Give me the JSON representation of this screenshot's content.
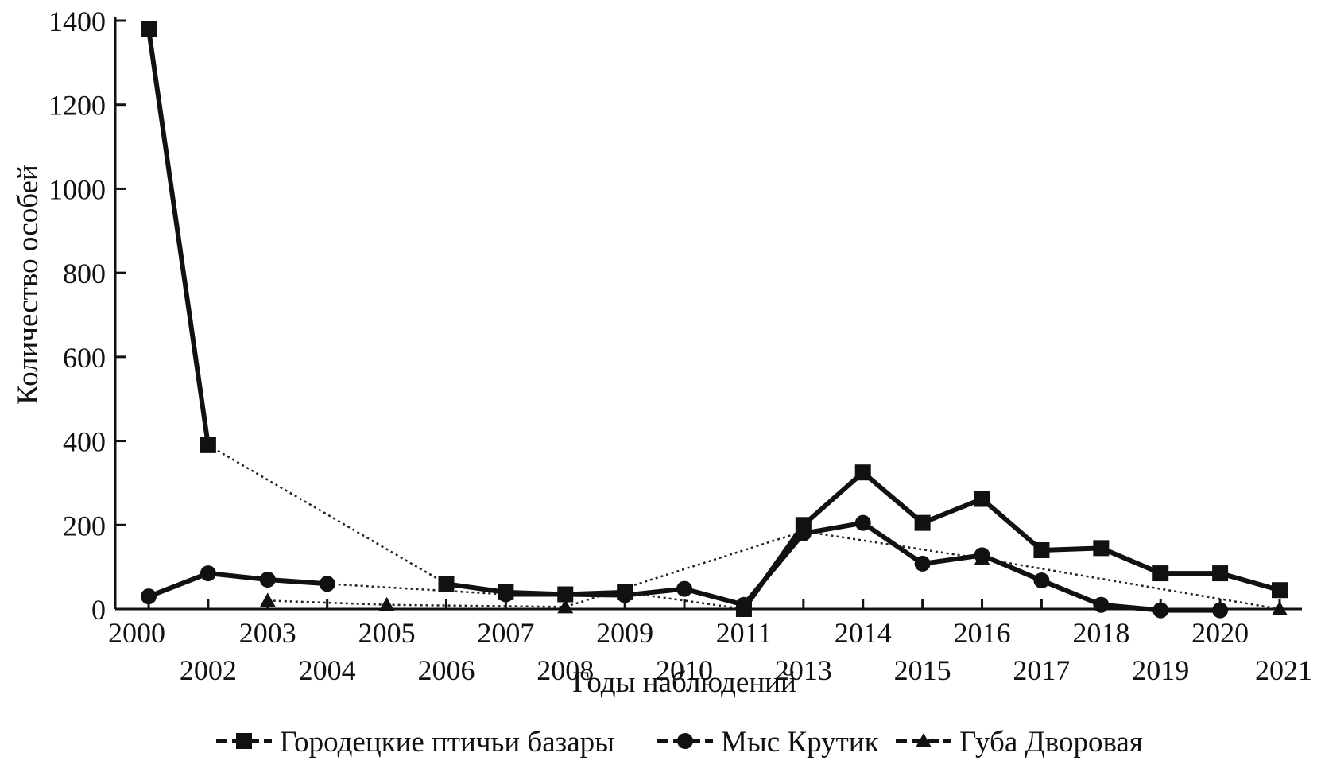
{
  "chart_data": {
    "type": "line",
    "title": "",
    "xlabel": "Годы наблюдений",
    "ylabel": "Количество особей",
    "ylim": [
      0,
      1400
    ],
    "yticks": [
      0,
      200,
      400,
      600,
      800,
      1000,
      1200,
      1400
    ],
    "grid": false,
    "legend_position": "bottom",
    "categories": [
      "2000",
      "2002",
      "2003",
      "2004",
      "2005",
      "2006",
      "2007",
      "2008",
      "2009",
      "2010",
      "2011",
      "2013",
      "2014",
      "2015",
      "2016",
      "2017",
      "2018",
      "2019",
      "2020",
      "2021"
    ],
    "series": [
      {
        "name": "Городецкие птичьи базары",
        "marker": "square",
        "values": [
          1380,
          390,
          null,
          null,
          null,
          60,
          40,
          35,
          40,
          null,
          0,
          200,
          325,
          205,
          262,
          140,
          145,
          85,
          85,
          45
        ]
      },
      {
        "name": "Мыс Крутик",
        "marker": "circle",
        "values": [
          30,
          85,
          70,
          60,
          null,
          null,
          35,
          35,
          33,
          48,
          10,
          180,
          205,
          108,
          128,
          68,
          10,
          -3,
          -3,
          null
        ]
      },
      {
        "name": "Губа Дворовая",
        "marker": "triangle",
        "values": [
          null,
          null,
          20,
          null,
          10,
          null,
          null,
          5,
          null,
          null,
          null,
          185,
          null,
          null,
          120,
          null,
          null,
          null,
          null,
          0
        ]
      }
    ]
  },
  "legend_label": "Городецкие птичьи базары"
}
